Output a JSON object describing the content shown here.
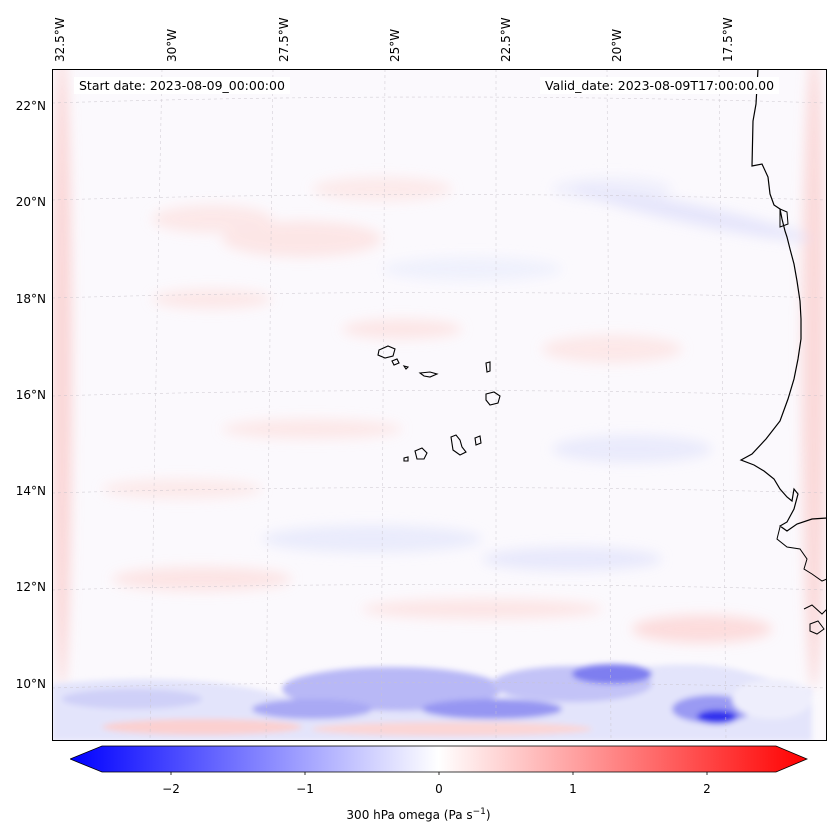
{
  "map": {
    "start_date": "Start date: 2023-08-09_00:00:00",
    "valid_date": "Valid_date: 2023-08-09T17:00:00.00",
    "lon_labels": [
      "32.5°W",
      "30°W",
      "27.5°W",
      "25°W",
      "22.5°W",
      "20°W",
      "17.5°W"
    ],
    "lat_labels": [
      "22°N",
      "20°N",
      "18°N",
      "16°N",
      "14°N",
      "12°N",
      "10°N"
    ],
    "features": [
      "Cape Verde islands",
      "West African coastline"
    ]
  },
  "colorbar": {
    "ticks": [
      "−2",
      "−1",
      "0",
      "1",
      "2"
    ],
    "label_main": "300 hPa omega (Pa s",
    "label_sup": "−1",
    "label_end": ")",
    "range": [
      -2.6,
      2.6
    ],
    "colors": {
      "low": "#0000ff",
      "mid": "#ffffff",
      "high": "#ff0000"
    }
  }
}
